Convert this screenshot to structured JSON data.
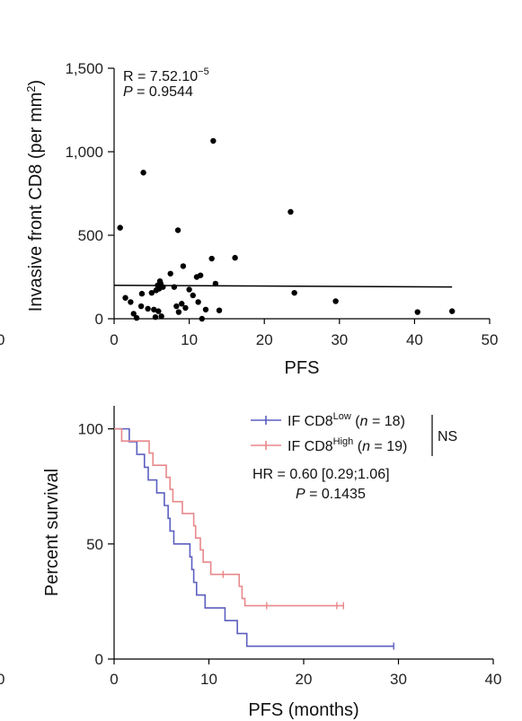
{
  "chart_data": [
    {
      "type": "scatter",
      "xlabel": "PFS",
      "ylabel": "Invasive front CD8 (per mm",
      "ylabel_sup": "2",
      "ylabel_close": ")",
      "xlim": [
        0,
        50
      ],
      "ylim": [
        0,
        1500
      ],
      "x_ticks": [
        "0",
        "10",
        "20",
        "30",
        "40",
        "50"
      ],
      "y_ticks": [
        "0",
        "500",
        "1,000",
        "1,500"
      ],
      "annotation_r_prefix": "R = 7.52.10",
      "annotation_r_exp": "−5",
      "annotation_p_label": "P",
      "annotation_p_value": " = 0.9544",
      "points": [
        [
          0.8,
          545
        ],
        [
          1.5,
          125
        ],
        [
          2.2,
          100
        ],
        [
          2.6,
          30
        ],
        [
          3,
          5
        ],
        [
          3.6,
          75
        ],
        [
          3.7,
          150
        ],
        [
          3.9,
          875
        ],
        [
          4.5,
          60
        ],
        [
          5,
          155
        ],
        [
          5.3,
          55
        ],
        [
          5.5,
          10
        ],
        [
          5.6,
          170
        ],
        [
          5.8,
          200
        ],
        [
          5.9,
          45
        ],
        [
          6,
          180
        ],
        [
          6.1,
          225
        ],
        [
          6.2,
          210
        ],
        [
          6.3,
          15
        ],
        [
          6.5,
          190
        ],
        [
          7.5,
          270
        ],
        [
          8,
          190
        ],
        [
          8.3,
          75
        ],
        [
          8.5,
          530
        ],
        [
          8.6,
          40
        ],
        [
          9,
          90
        ],
        [
          9.2,
          315
        ],
        [
          9.5,
          65
        ],
        [
          10,
          175
        ],
        [
          10.5,
          140
        ],
        [
          11,
          250
        ],
        [
          11.2,
          100
        ],
        [
          11.5,
          260
        ],
        [
          11.7,
          0
        ],
        [
          12.2,
          55
        ],
        [
          13,
          360
        ],
        [
          13.2,
          1065
        ],
        [
          13.5,
          210
        ],
        [
          14,
          50
        ],
        [
          16.1,
          365
        ],
        [
          23.5,
          640
        ],
        [
          24,
          155
        ],
        [
          29.5,
          105
        ],
        [
          40.4,
          40
        ],
        [
          45,
          45
        ]
      ],
      "trend": [
        [
          0,
          200
        ],
        [
          45,
          190
        ]
      ]
    },
    {
      "type": "line",
      "xlabel": "PFS (months)",
      "ylabel": "Percent survival",
      "xlim": [
        0,
        40
      ],
      "ylim": [
        0,
        110
      ],
      "x_ticks": [
        "0",
        "10",
        "20",
        "30",
        "40"
      ],
      "y_ticks": [
        "0",
        "50",
        "100"
      ],
      "series": [
        {
          "name_prefix": "IF CD8",
          "name_sup": "Low",
          "name_n_open": " (",
          "name_n_var": "n",
          "name_n_rest": " = 18)",
          "color": "#5b5fbf",
          "steps": [
            [
              0,
              100
            ],
            [
              1.6,
              94.4
            ],
            [
              2.4,
              88.9
            ],
            [
              3.2,
              83.3
            ],
            [
              3.6,
              77.8
            ],
            [
              4.5,
              72.2
            ],
            [
              5.3,
              66.7
            ],
            [
              5.7,
              61.1
            ],
            [
              5.9,
              55.6
            ],
            [
              6.3,
              50
            ],
            [
              8,
              44.4
            ],
            [
              8.2,
              38.9
            ],
            [
              8.4,
              33.3
            ],
            [
              8.7,
              27.8
            ],
            [
              9.6,
              22.2
            ],
            [
              11.7,
              16.7
            ],
            [
              13,
              11.1
            ],
            [
              14,
              5.6
            ],
            [
              29.5,
              5.6
            ]
          ],
          "censors": [
            [
              29.5,
              5.6
            ]
          ]
        },
        {
          "name_prefix": "IF CD8",
          "name_sup": "High",
          "name_n_open": " (",
          "name_n_var": "n",
          "name_n_rest": " = 19)",
          "color": "#e8888a",
          "steps": [
            [
              0,
              100
            ],
            [
              0.8,
              94.7
            ],
            [
              3.7,
              89.5
            ],
            [
              4.1,
              84.2
            ],
            [
              5.5,
              78.9
            ],
            [
              5.9,
              73.7
            ],
            [
              6.2,
              68.4
            ],
            [
              7.2,
              63.2
            ],
            [
              8.4,
              57.9
            ],
            [
              8.6,
              52.6
            ],
            [
              9.1,
              47.4
            ],
            [
              9.4,
              42.1
            ],
            [
              10.2,
              36.8
            ],
            [
              13.2,
              31.6
            ],
            [
              13.5,
              26.3
            ],
            [
              13.8,
              23.2
            ],
            [
              24.2,
              23.2
            ]
          ],
          "censors": [
            [
              11.5,
              36.8
            ],
            [
              16.1,
              23.2
            ],
            [
              23.5,
              23.2
            ],
            [
              24.2,
              23.2
            ]
          ]
        }
      ],
      "significance": "NS",
      "hr_text": "HR = 0.60 [0.29;1.06]",
      "p_label": "P",
      "p_value": " = 0.1435"
    }
  ],
  "edge_left_label": "0"
}
